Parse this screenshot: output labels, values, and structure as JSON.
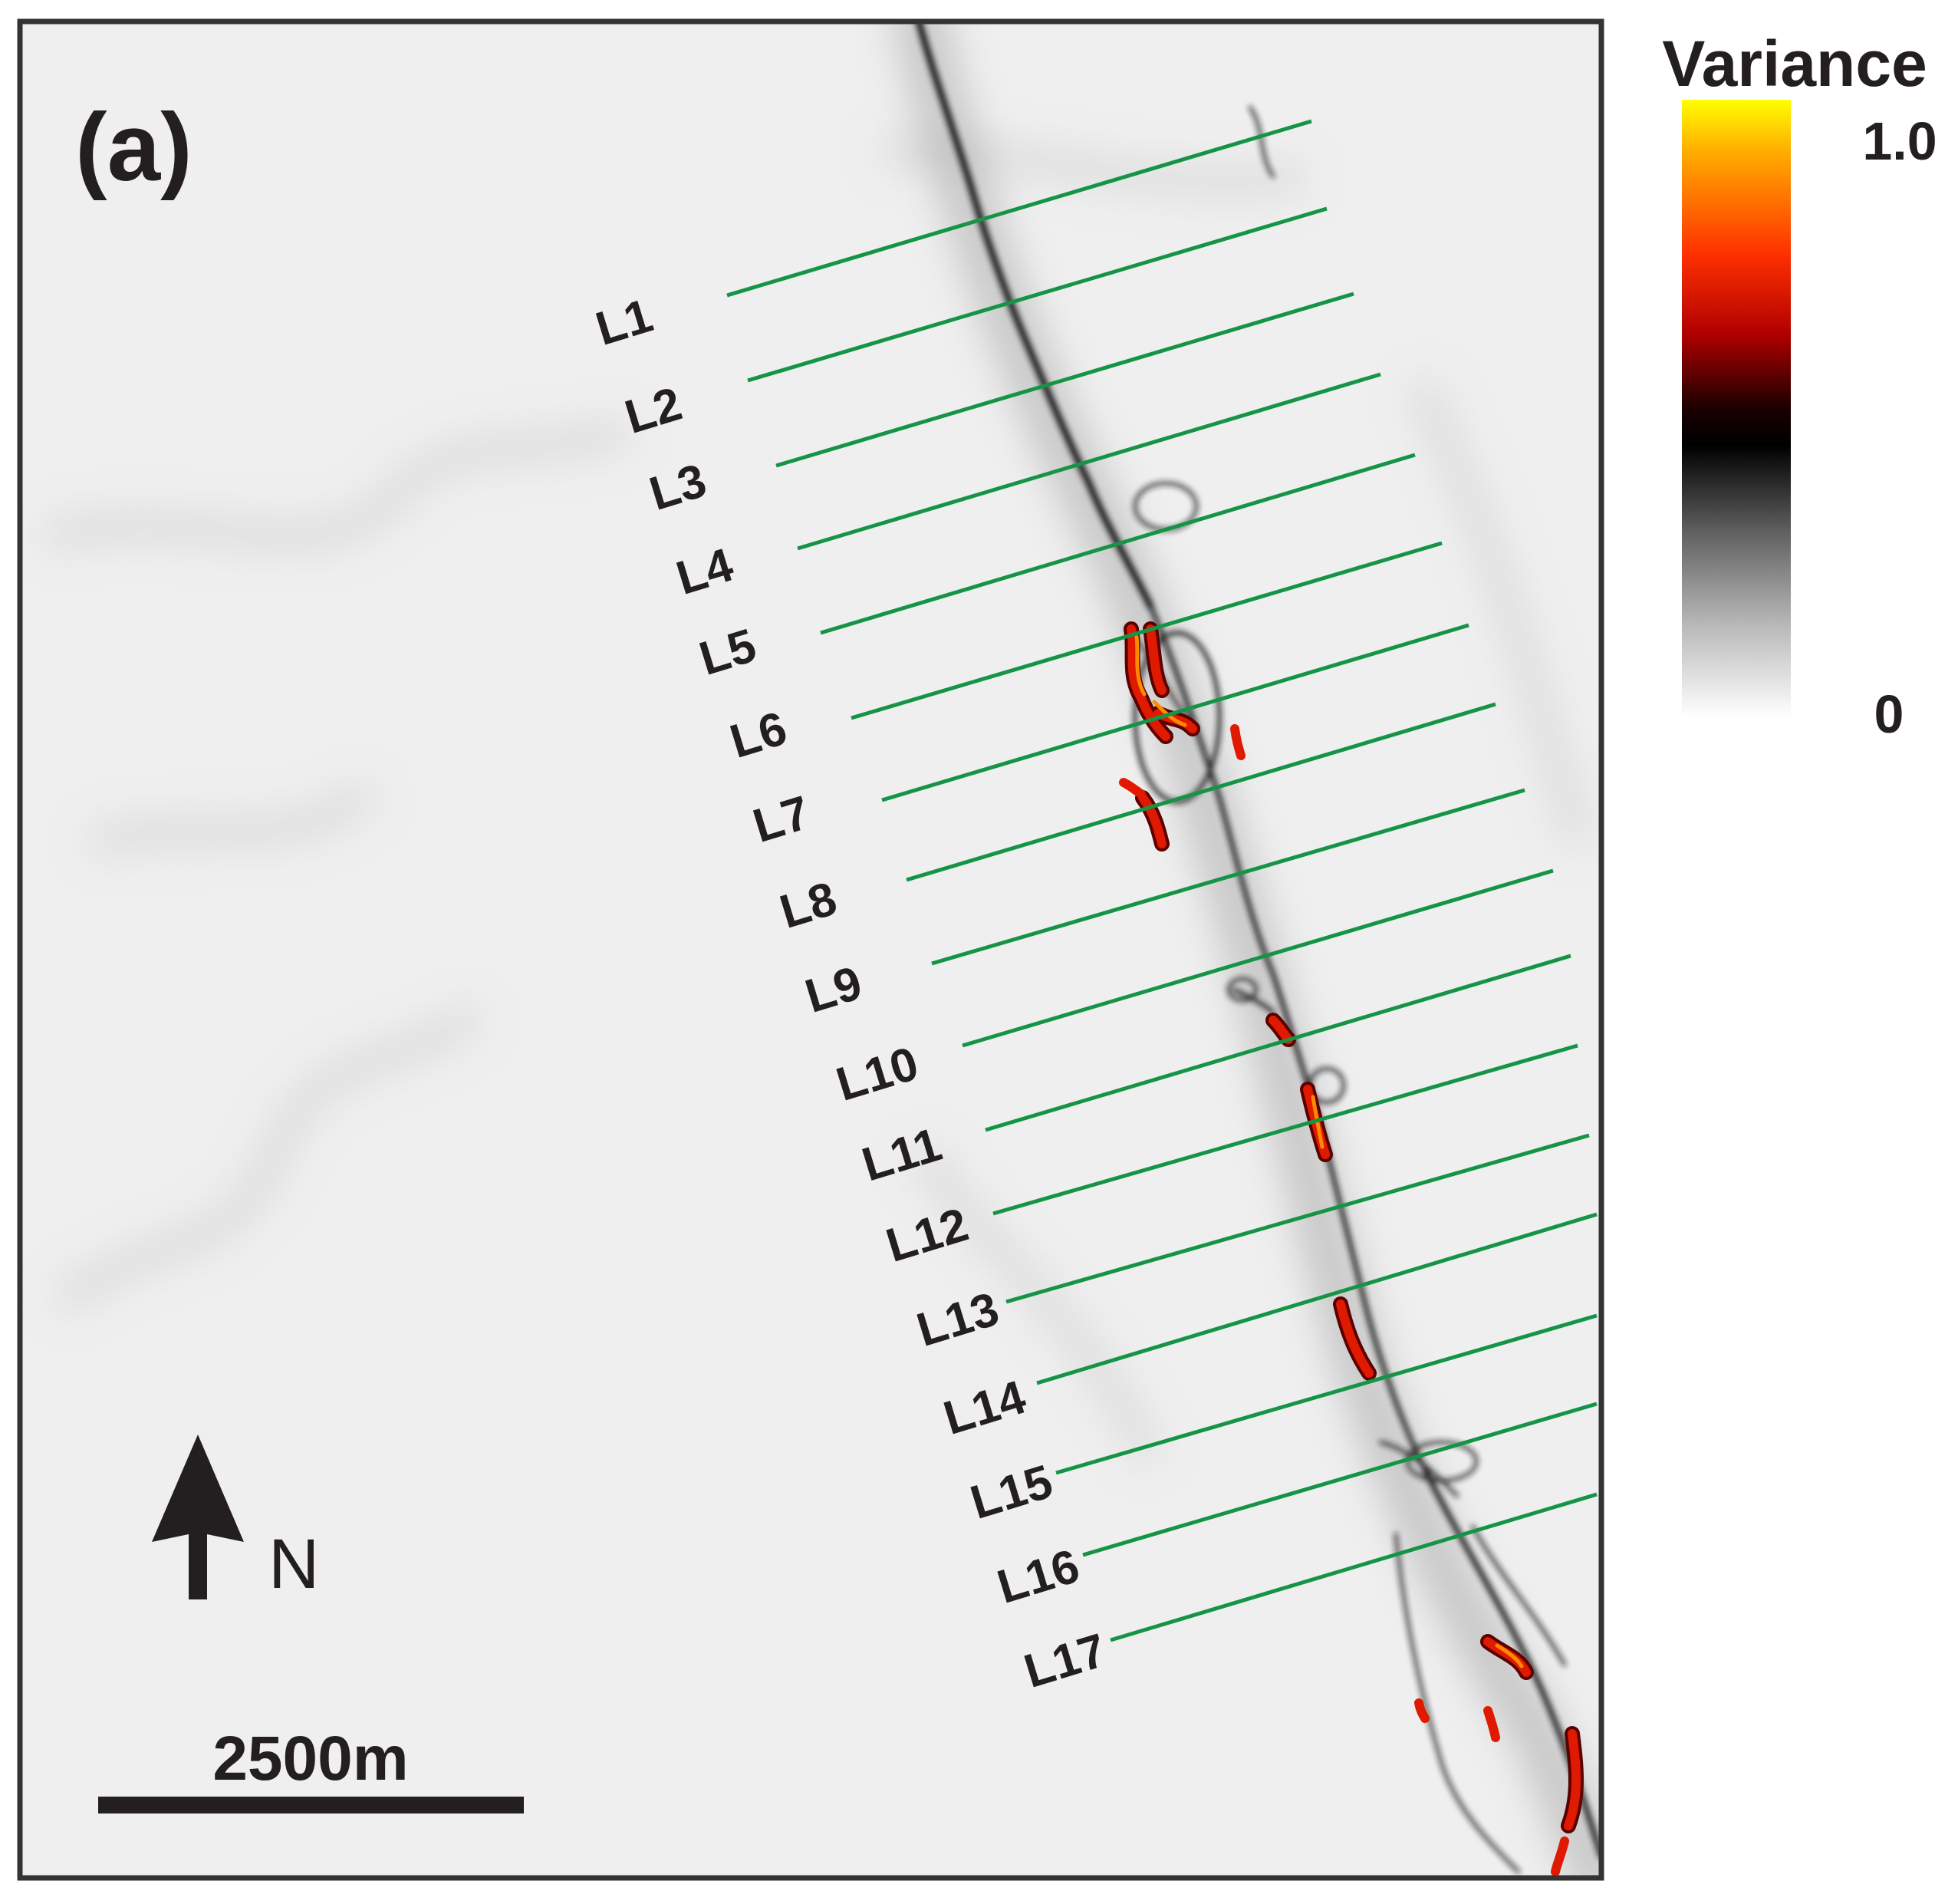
{
  "panel_label": "(a)",
  "legend": {
    "title": "Variance",
    "max_label": "1.0",
    "min_label": "0",
    "colors": [
      "#ffff00",
      "#ffa500",
      "#ff2a00",
      "#d20000",
      "#3a0000",
      "#000000",
      "#555555",
      "#aaaaaa",
      "#f7f7f7"
    ]
  },
  "north": {
    "label": "N"
  },
  "scale_bar": {
    "label": "2500m"
  },
  "survey_lines": [
    {
      "name": "L1"
    },
    {
      "name": "L2"
    },
    {
      "name": "L3"
    },
    {
      "name": "L4"
    },
    {
      "name": "L5"
    },
    {
      "name": "L6"
    },
    {
      "name": "L7"
    },
    {
      "name": "L8"
    },
    {
      "name": "L9"
    },
    {
      "name": "L10"
    },
    {
      "name": "L11"
    },
    {
      "name": "L12"
    },
    {
      "name": "L13"
    },
    {
      "name": "L14"
    },
    {
      "name": "L15"
    },
    {
      "name": "L16"
    },
    {
      "name": "L17"
    }
  ],
  "colors": {
    "survey_line": "#159447",
    "frame": "#333333",
    "background": "#efefef",
    "fault": "#1a1a1a",
    "anomaly_high": "#ff8a00",
    "anomaly_mid": "#e01a00"
  }
}
